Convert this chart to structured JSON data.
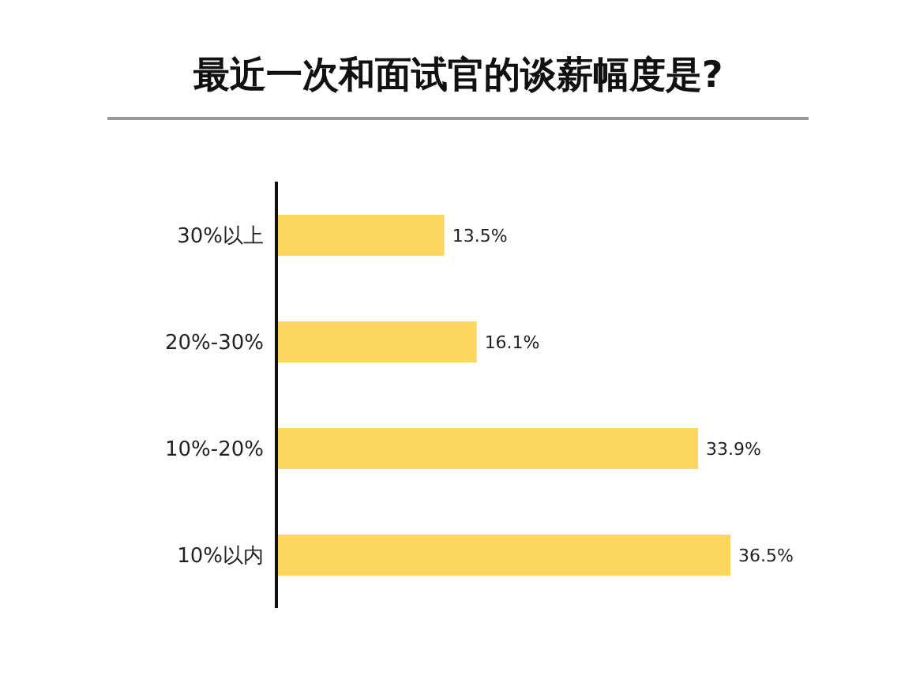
{
  "chart_data": {
    "type": "bar",
    "orientation": "horizontal",
    "title": "最近一次和面试官的谈薪幅度是?",
    "categories": [
      "30%以上",
      "20%-30%",
      "10%-20%",
      "10%以内"
    ],
    "values": [
      13.5,
      16.1,
      33.9,
      36.5
    ],
    "value_labels": [
      "13.5%",
      "16.1%",
      "33.9%",
      "36.5%"
    ],
    "color": "#fdd660",
    "grid": false,
    "legend": false
  }
}
